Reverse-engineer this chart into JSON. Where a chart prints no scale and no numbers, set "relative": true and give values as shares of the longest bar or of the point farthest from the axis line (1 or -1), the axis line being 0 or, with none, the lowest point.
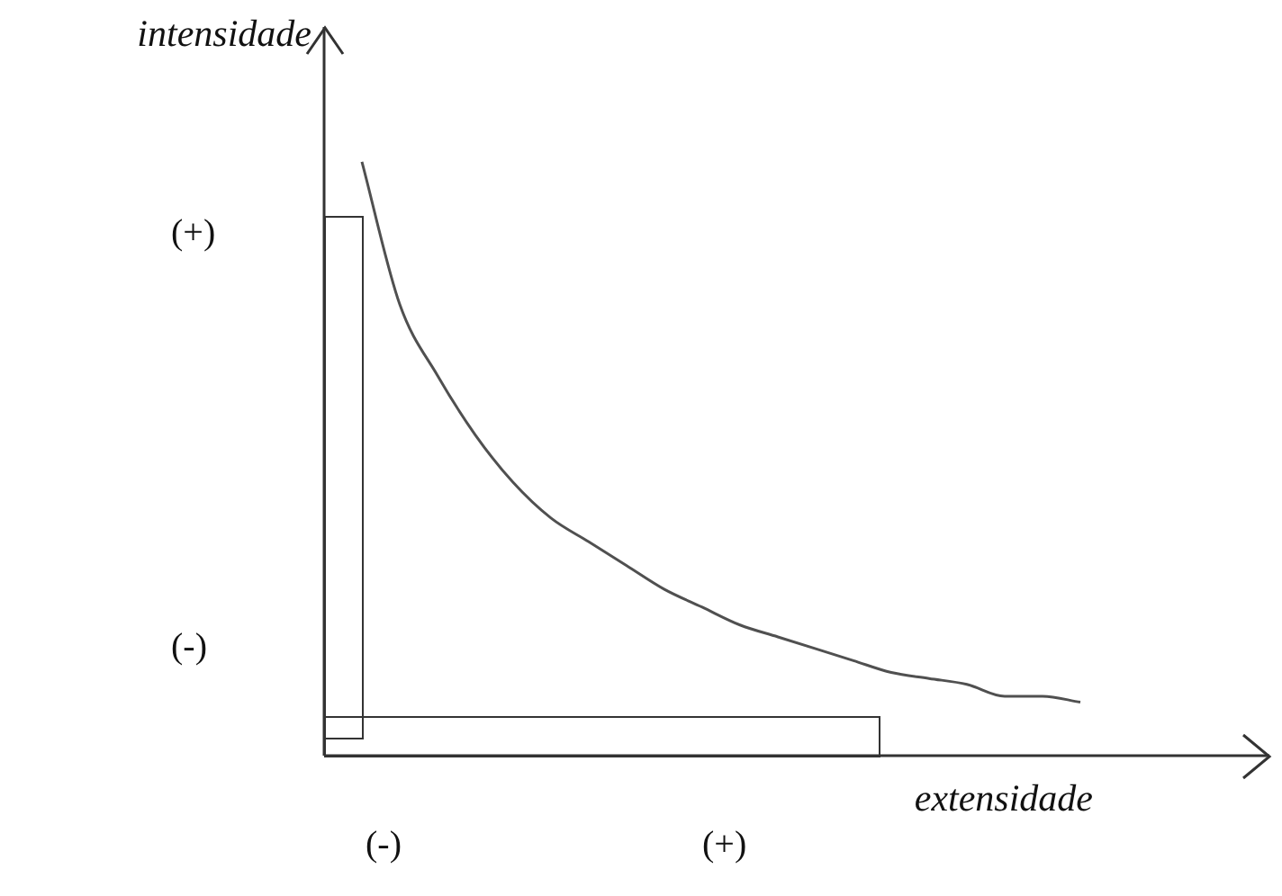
{
  "chart_data": {
    "type": "line",
    "relative": true,
    "xlabel": "extensidade",
    "ylabel": "intensidade",
    "categories": [
      null,
      null,
      null,
      null,
      null,
      null,
      null,
      null,
      null,
      null,
      null,
      null,
      null,
      null,
      null,
      null,
      null,
      null,
      null,
      null,
      null,
      null,
      null,
      null,
      null,
      null
    ],
    "series": [
      {
        "color": "#505050",
        "values": [
          null,
          1,
          0.76,
          0.64,
          0.54,
          0.46,
          0.4,
          0.36,
          0.32,
          0.28,
          0.25,
          0.22,
          0.2,
          0.18,
          0.16,
          0.14,
          0.13,
          0.12,
          0.1,
          0.1,
          0.09,
          null,
          null,
          null,
          null,
          null
        ]
      }
    ],
    "annotations": [
      "(+)",
      "(-)",
      "(-)",
      "(+)"
    ],
    "legend": false,
    "marker": "none",
    "line_style": "solid"
  }
}
